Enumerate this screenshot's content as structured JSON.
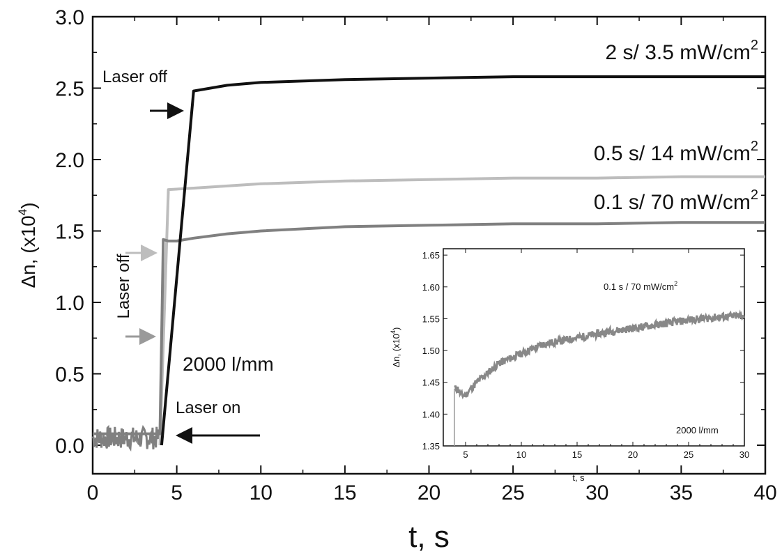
{
  "chart_data": [
    {
      "type": "line",
      "xlabel": "t, s",
      "ylabel": "Δn, (x10",
      "ylabel_exp": "4",
      "ylabel_close": ")",
      "xlim": [
        0,
        40
      ],
      "ylim": [
        -0.2,
        3.0
      ],
      "xticks": [
        "0",
        "5",
        "10",
        "15",
        "20",
        "25",
        "30",
        "35",
        "40"
      ],
      "yticks": [
        "0.0",
        "0.5",
        "1.0",
        "1.5",
        "2.0",
        "2.5",
        "3.0"
      ],
      "grid": false,
      "series": [
        {
          "label_text": "2 s/ 3.5 mW/cm",
          "label_exp": "2",
          "color": "#111111",
          "points": [
            [
              4.1,
              0.0
            ],
            [
              6.0,
              2.48
            ],
            [
              8,
              2.52
            ],
            [
              10,
              2.54
            ],
            [
              15,
              2.56
            ],
            [
              20,
              2.57
            ],
            [
              25,
              2.58
            ],
            [
              30,
              2.58
            ],
            [
              40,
              2.58
            ]
          ]
        },
        {
          "label_text": "0.5 s/ 14 mW/cm",
          "label_exp": "2",
          "color": "#bdbdbd",
          "points": [
            [
              4.0,
              0.0
            ],
            [
              4.5,
              1.79
            ],
            [
              6,
              1.8
            ],
            [
              10,
              1.83
            ],
            [
              15,
              1.85
            ],
            [
              20,
              1.86
            ],
            [
              25,
              1.87
            ],
            [
              30,
              1.87
            ],
            [
              35,
              1.88
            ],
            [
              40,
              1.88
            ]
          ]
        },
        {
          "label_text": "0.1 s/ 70 mW/cm",
          "label_exp": "2",
          "color": "#808080",
          "points": [
            [
              0,
              0.08
            ],
            [
              4.0,
              0.08
            ],
            [
              4.2,
              1.44
            ],
            [
              4.5,
              1.43
            ],
            [
              5,
              1.43
            ],
            [
              6,
              1.45
            ],
            [
              8,
              1.48
            ],
            [
              10,
              1.5
            ],
            [
              15,
              1.53
            ],
            [
              20,
              1.54
            ],
            [
              25,
              1.55
            ],
            [
              30,
              1.55
            ],
            [
              35,
              1.56
            ],
            [
              40,
              1.56
            ]
          ]
        }
      ],
      "annotations": {
        "laser_off_top": "Laser off",
        "laser_off_left": "Laser off",
        "laser_on": "Laser on",
        "grating": "2000 l/mm"
      }
    },
    {
      "type": "line",
      "xlabel": "t, s",
      "ylabel": "Δn, (x10",
      "ylabel_exp": "4",
      "ylabel_close": ")",
      "xlim": [
        3,
        30
      ],
      "ylim": [
        1.35,
        1.66
      ],
      "xticks": [
        "5",
        "10",
        "15",
        "20",
        "25",
        "30"
      ],
      "yticks": [
        "1.35",
        "1.40",
        "1.45",
        "1.50",
        "1.55",
        "1.60",
        "1.65"
      ],
      "grid": false,
      "series": [
        {
          "label_text": "0.1 s / 70 mW/cm",
          "label_exp": "2",
          "color": "#888888",
          "points": [
            [
              4.0,
              1.35
            ],
            [
              4.0,
              1.44
            ],
            [
              4.3,
              1.44
            ],
            [
              4.6,
              1.43
            ],
            [
              5,
              1.43
            ],
            [
              6,
              1.45
            ],
            [
              8,
              1.48
            ],
            [
              10,
              1.495
            ],
            [
              12,
              1.51
            ],
            [
              15,
              1.52
            ],
            [
              18,
              1.53
            ],
            [
              20,
              1.535
            ],
            [
              22,
              1.54
            ],
            [
              25,
              1.548
            ],
            [
              28,
              1.553
            ],
            [
              30,
              1.555
            ]
          ]
        }
      ],
      "annotations": {
        "grating": "2000 l/mm"
      }
    }
  ]
}
